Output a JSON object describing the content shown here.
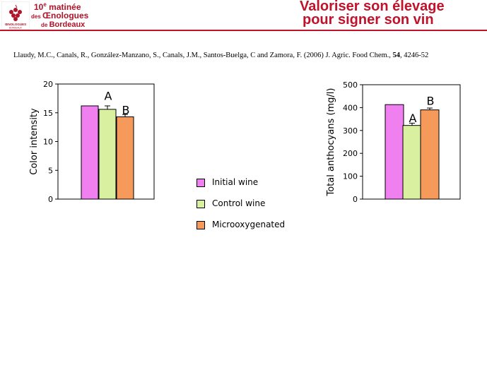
{
  "header": {
    "event": {
      "line1_num": "10",
      "line1_sup": "e",
      "line1_text": " matinée",
      "line2_pre": "des ",
      "line2_text": "Œnologues",
      "line3_pre": "de ",
      "line3_text": "Bordeaux"
    },
    "logo_text": "ŒNOLOGUES",
    "logo_sub": "BORDEAUX",
    "title_line1": "Valoriser son élevage",
    "title_line2": "pour signer son vin"
  },
  "citation": {
    "authors": "Llaudy, M.C., Canals, R., González-Manzano, S., Canals, J.M., Santos-Buelga, C and Zamora, F. (2006) J. Agric. Food Chem., ",
    "volume": "54",
    "pages": ", 4246-52"
  },
  "colors": {
    "initial": "#f080f0",
    "control": "#d8f0a0",
    "micro": "#f59a5a",
    "header_red": "#c0122a"
  },
  "legend": [
    {
      "label": "Initial wine",
      "color_key": "initial"
    },
    {
      "label": "Control wine",
      "color_key": "control"
    },
    {
      "label": "Microoxygenated",
      "color_key": "micro"
    }
  ],
  "chart_data": [
    {
      "type": "bar",
      "xlabel": "",
      "ylabel": "Color intensity",
      "ylim": [
        0,
        20
      ],
      "yticks": [
        0,
        5,
        10,
        15,
        20
      ],
      "grid": false,
      "categories": [
        "Initial wine",
        "Control wine",
        "Microoxygenated"
      ],
      "values": [
        16.2,
        15.6,
        14.3
      ],
      "errors": [
        0,
        0.6,
        0.4
      ],
      "annotations": [
        {
          "text": "A",
          "category": "Control wine",
          "y": 18.0
        },
        {
          "text": "B",
          "category": "Microoxygenated",
          "y": 15.5
        }
      ]
    },
    {
      "type": "bar",
      "xlabel": "",
      "ylabel": "Total anthocyans (mg/l)",
      "ylim": [
        0,
        500
      ],
      "yticks": [
        0,
        100,
        200,
        300,
        400,
        500
      ],
      "grid": false,
      "categories": [
        "Initial wine",
        "Control wine",
        "Microoxygenated"
      ],
      "values": [
        413,
        322,
        390
      ],
      "errors": [
        0,
        10,
        8
      ],
      "annotations": [
        {
          "text": "A",
          "category": "Control wine",
          "y": 355
        },
        {
          "text": "B",
          "category": "Microoxygenated",
          "y": 430
        }
      ]
    }
  ]
}
